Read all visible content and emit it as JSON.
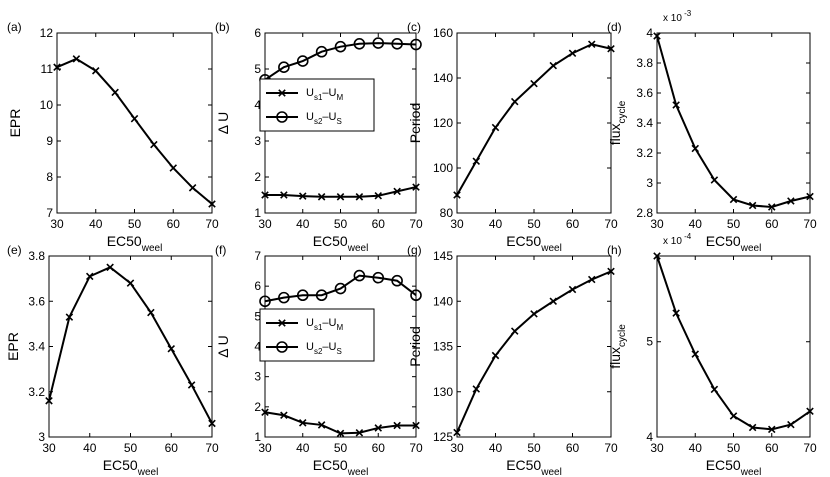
{
  "chart_data": [
    {
      "id": "a",
      "panel_label": "(a)",
      "type": "line",
      "x": [
        30,
        35,
        40,
        45,
        50,
        55,
        60,
        65,
        70
      ],
      "series": [
        {
          "name": "EPR",
          "marker": "x",
          "values": [
            11.05,
            11.28,
            10.95,
            10.35,
            9.62,
            8.9,
            8.25,
            7.7,
            7.25
          ]
        }
      ],
      "xlim": [
        30,
        70
      ],
      "xticks": [
        "30",
        "40",
        "50",
        "60",
        "70"
      ],
      "ylim": [
        7,
        12
      ],
      "yticks": [
        "7",
        "8",
        "9",
        "10",
        "11",
        "12"
      ],
      "ylabel": "EPR",
      "xlabel": "EC50",
      "xlabel_sub": "weel"
    },
    {
      "id": "b",
      "panel_label": "(b)",
      "type": "line",
      "x": [
        30,
        35,
        40,
        45,
        50,
        55,
        60,
        65,
        70
      ],
      "series": [
        {
          "name": "Us1-UM",
          "marker": "x",
          "values": [
            1.5,
            1.5,
            1.47,
            1.45,
            1.45,
            1.45,
            1.48,
            1.6,
            1.72
          ]
        },
        {
          "name": "Us2-US",
          "marker": "o",
          "values": [
            4.7,
            5.05,
            5.22,
            5.48,
            5.62,
            5.7,
            5.72,
            5.7,
            5.68
          ]
        }
      ],
      "legend": [
        {
          "main": "U",
          "sub1": "s1",
          "mid": "–U",
          "sub2": "M",
          "marker": "x"
        },
        {
          "main": "U",
          "sub1": "s2",
          "mid": "–U",
          "sub2": "S",
          "marker": "o"
        }
      ],
      "xlim": [
        30,
        70
      ],
      "xticks": [
        "30",
        "40",
        "50",
        "60",
        "70"
      ],
      "ylim": [
        1,
        6
      ],
      "yticks": [
        "1",
        "2",
        "3",
        "4",
        "5",
        "6"
      ],
      "ylabel": "Δ U",
      "xlabel": "EC50",
      "xlabel_sub": "weel"
    },
    {
      "id": "c",
      "panel_label": "(c)",
      "type": "line",
      "x": [
        30,
        35,
        40,
        45,
        50,
        55,
        60,
        65,
        70
      ],
      "series": [
        {
          "name": "Period",
          "marker": "x",
          "values": [
            88,
            103,
            118,
            129.5,
            137.5,
            145.5,
            151,
            155,
            153
          ]
        }
      ],
      "xlim": [
        30,
        70
      ],
      "xticks": [
        "30",
        "40",
        "50",
        "60",
        "70"
      ],
      "ylim": [
        80,
        160
      ],
      "yticks": [
        "80",
        "100",
        "120",
        "140",
        "160"
      ],
      "ylabel": "Period",
      "xlabel": "EC50",
      "xlabel_sub": "weel"
    },
    {
      "id": "d",
      "panel_label": "(d)",
      "type": "line",
      "x": [
        30,
        35,
        40,
        45,
        50,
        55,
        60,
        65,
        70
      ],
      "series": [
        {
          "name": "flux_cycle",
          "marker": "x",
          "values": [
            3.98,
            3.52,
            3.23,
            3.02,
            2.89,
            2.85,
            2.84,
            2.88,
            2.91
          ]
        }
      ],
      "xlim": [
        30,
        70
      ],
      "xticks": [
        "30",
        "40",
        "50",
        "60",
        "70"
      ],
      "ylim": [
        2.8,
        4
      ],
      "yticks": [
        "2.8",
        "3",
        "3.2",
        "3.4",
        "3.6",
        "3.8",
        "4"
      ],
      "scale_note": "x 10",
      "scale_exp": "-3",
      "ylabel": "flux",
      "ylabel_sub": "cycle",
      "xlabel": "EC50",
      "xlabel_sub": "weel"
    },
    {
      "id": "e",
      "panel_label": "(e)",
      "type": "line",
      "x": [
        30,
        35,
        40,
        45,
        50,
        55,
        60,
        65,
        70
      ],
      "series": [
        {
          "name": "EPR",
          "marker": "x",
          "values": [
            3.16,
            3.53,
            3.71,
            3.75,
            3.68,
            3.55,
            3.39,
            3.23,
            3.06
          ]
        }
      ],
      "xlim": [
        30,
        70
      ],
      "xticks": [
        "30",
        "40",
        "50",
        "60",
        "70"
      ],
      "ylim": [
        3,
        3.8
      ],
      "yticks": [
        "3",
        "3.2",
        "3.4",
        "3.6",
        "3.8"
      ],
      "ylabel": "EPR",
      "xlabel": "EC50",
      "xlabel_sub": "weel"
    },
    {
      "id": "f",
      "panel_label": "(f)",
      "type": "line",
      "x": [
        30,
        35,
        40,
        45,
        50,
        55,
        60,
        65,
        70
      ],
      "series": [
        {
          "name": "Us1-UM",
          "marker": "x",
          "values": [
            1.82,
            1.72,
            1.47,
            1.4,
            1.12,
            1.14,
            1.3,
            1.38,
            1.38
          ]
        },
        {
          "name": "Us2-US",
          "marker": "o",
          "values": [
            5.5,
            5.62,
            5.7,
            5.7,
            5.92,
            6.35,
            6.28,
            6.18,
            5.7
          ]
        }
      ],
      "legend": [
        {
          "main": "U",
          "sub1": "s1",
          "mid": "–U",
          "sub2": "M",
          "marker": "x"
        },
        {
          "main": "U",
          "sub1": "s2",
          "mid": "–U",
          "sub2": "S",
          "marker": "o"
        }
      ],
      "xlim": [
        30,
        70
      ],
      "xticks": [
        "30",
        "40",
        "50",
        "60",
        "70"
      ],
      "ylim": [
        1,
        7
      ],
      "yticks": [
        "1",
        "2",
        "3",
        "4",
        "5",
        "6",
        "7"
      ],
      "ylabel": "Δ U",
      "xlabel": "EC50",
      "xlabel_sub": "weel"
    },
    {
      "id": "g",
      "panel_label": "(g)",
      "type": "line",
      "x": [
        30,
        35,
        40,
        45,
        50,
        55,
        60,
        65,
        70
      ],
      "series": [
        {
          "name": "Period",
          "marker": "x",
          "values": [
            125.5,
            130.3,
            134,
            136.7,
            138.6,
            140,
            141.3,
            142.4,
            143.3
          ]
        }
      ],
      "xlim": [
        30,
        70
      ],
      "xticks": [
        "30",
        "40",
        "50",
        "60",
        "70"
      ],
      "ylim": [
        125,
        145
      ],
      "yticks": [
        "125",
        "130",
        "135",
        "140",
        "145"
      ],
      "ylabel": "Period",
      "xlabel": "EC50",
      "xlabel_sub": "weel"
    },
    {
      "id": "h",
      "panel_label": "(h)",
      "type": "line",
      "x": [
        30,
        35,
        40,
        45,
        50,
        55,
        60,
        65,
        70
      ],
      "series": [
        {
          "name": "flux_cycle",
          "marker": "x",
          "values": [
            5.9,
            5.3,
            4.87,
            4.5,
            4.22,
            4.1,
            4.08,
            4.13,
            4.27
          ]
        }
      ],
      "xlim": [
        30,
        70
      ],
      "xticks": [
        "30",
        "40",
        "50",
        "60",
        "70"
      ],
      "ylim": [
        4,
        5.9
      ],
      "yticks": [
        "4",
        "5"
      ],
      "ytick_values": [
        4,
        5
      ],
      "scale_note": "x 10",
      "scale_exp": "-4",
      "ylabel": "flux",
      "ylabel_sub": "cycle",
      "xlabel": "EC50",
      "xlabel_sub": "weel"
    }
  ]
}
